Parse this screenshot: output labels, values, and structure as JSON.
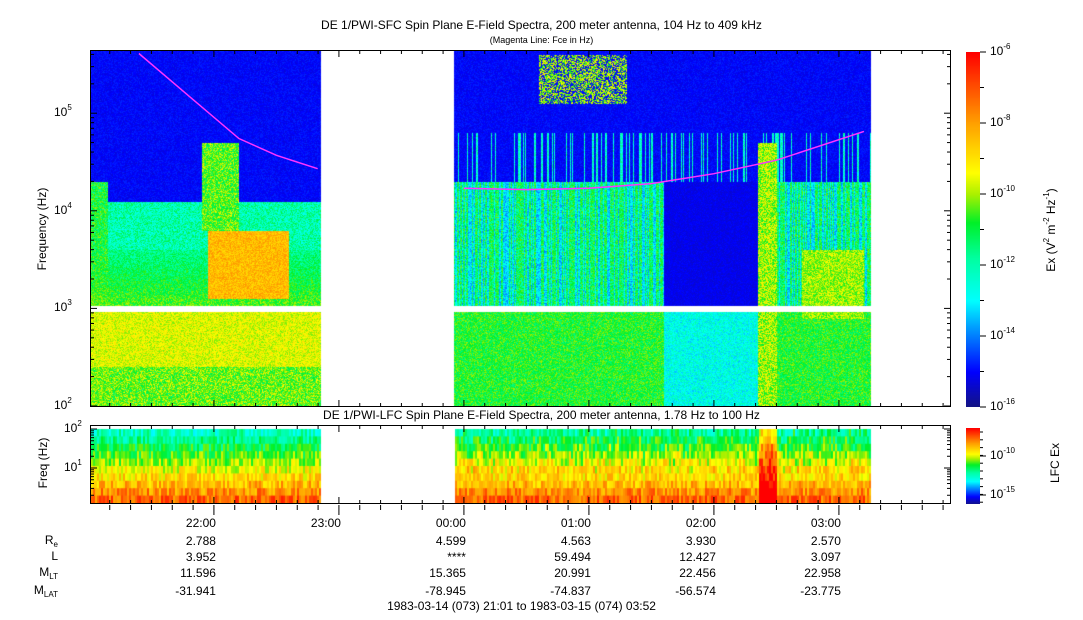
{
  "chart_data": [
    {
      "type": "heatmap",
      "title": "DE 1/PWI-SFC  Spin Plane E-Field Spectra, 200 meter antenna, 104 Hz to 409 kHz",
      "subtitle": "(Magenta Line: Fce in Hz)",
      "ylabel": "Frequency (Hz)",
      "yscale": "log",
      "ylim": [
        100,
        409000
      ],
      "y_ticks": [
        {
          "v": 100,
          "e": "2"
        },
        {
          "v": 1000,
          "e": "3"
        },
        {
          "v": 10000,
          "e": "4"
        },
        {
          "v": 100000,
          "e": "5"
        }
      ],
      "data_gap": [
        "22:51",
        "23:55"
      ],
      "data_end": "03:15",
      "colorbar": {
        "label": "Ex (V",
        "label_units": [
          "2",
          " m",
          "-2",
          " Hz",
          "-1",
          ")"
        ],
        "range_exp": [
          -16,
          -6
        ],
        "ticks_exp": [
          "-6",
          "-8",
          "-10",
          "-12",
          "-14",
          "-16"
        ]
      },
      "fce_line": {
        "color": "#ff33ff",
        "times_h": [
          21.4,
          21.8,
          22.2,
          22.5,
          22.83,
          24.0,
          24.5,
          25.0,
          25.5,
          26.0,
          26.5,
          27.2
        ],
        "values_hz": [
          409000,
          150000,
          55000,
          37000,
          27000,
          17000,
          16500,
          17000,
          19000,
          24000,
          33000,
          65000
        ]
      }
    },
    {
      "type": "heatmap",
      "title": "DE 1/PWI-LFC  Spin Plane E-Field Spectra, 200 meter antenna, 1.78 Hz to 100 Hz",
      "ylabel": "Freq (Hz)",
      "yscale": "log",
      "ylim": [
        1.78,
        100
      ],
      "y_ticks": [
        {
          "v": 10,
          "e": "1"
        },
        {
          "v": 100,
          "e": "2"
        }
      ],
      "colorbar": {
        "label": "LFC Ex",
        "ticks_exp": [
          "-10",
          "-15"
        ]
      }
    }
  ],
  "x_axis": {
    "start": "21:01",
    "end": "03:52",
    "ticks": [
      "22:00",
      "23:00",
      "00:00",
      "01:00",
      "02:00",
      "03:00"
    ],
    "tick_hours": [
      22,
      23,
      24,
      25,
      26,
      27
    ]
  },
  "ephemeris": {
    "rows": [
      {
        "label": "R",
        "sub": "e",
        "values": [
          "2.788",
          "",
          "4.599",
          "4.563",
          "3.930",
          "2.570"
        ]
      },
      {
        "label": "L",
        "sub": "",
        "values": [
          "3.952",
          "",
          "****",
          "59.494",
          "12.427",
          "3.097"
        ]
      },
      {
        "label": "M",
        "sub": "LT",
        "values": [
          "11.596",
          "",
          "15.365",
          "20.991",
          "22.456",
          "22.958"
        ]
      },
      {
        "label": "M",
        "sub": "LAT",
        "values": [
          "-31.941",
          "",
          "-78.945",
          "-74.837",
          "-56.574",
          "-23.775"
        ]
      }
    ],
    "time_range": "1983-03-14 (073) 21:01 to 1983-03-15 (074) 03:52"
  }
}
